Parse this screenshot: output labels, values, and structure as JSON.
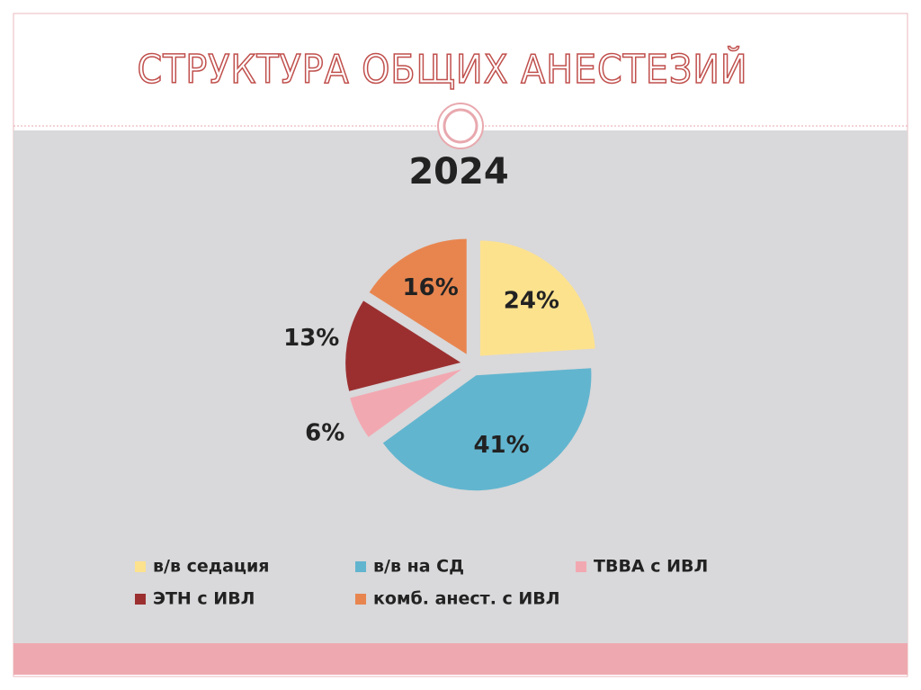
{
  "slide_title": "СТРУКТУРА ОБЩИХ АНЕСТЕЗИЙ",
  "chart_data": {
    "type": "pie",
    "title": "2024",
    "categories": [
      "в/в седация",
      "в/в на СД",
      "ТВВА с ИВЛ",
      "ЭТН с ИВЛ",
      "комб. анест. с ИВЛ"
    ],
    "values": [
      24,
      41,
      6,
      13,
      16
    ],
    "value_labels": [
      "24%",
      "41%",
      "6%",
      "13%",
      "16%"
    ],
    "colors": [
      "#fde28e",
      "#62b5cf",
      "#f2a8b1",
      "#9b2f30",
      "#e8854f"
    ],
    "legend": "bottom"
  }
}
